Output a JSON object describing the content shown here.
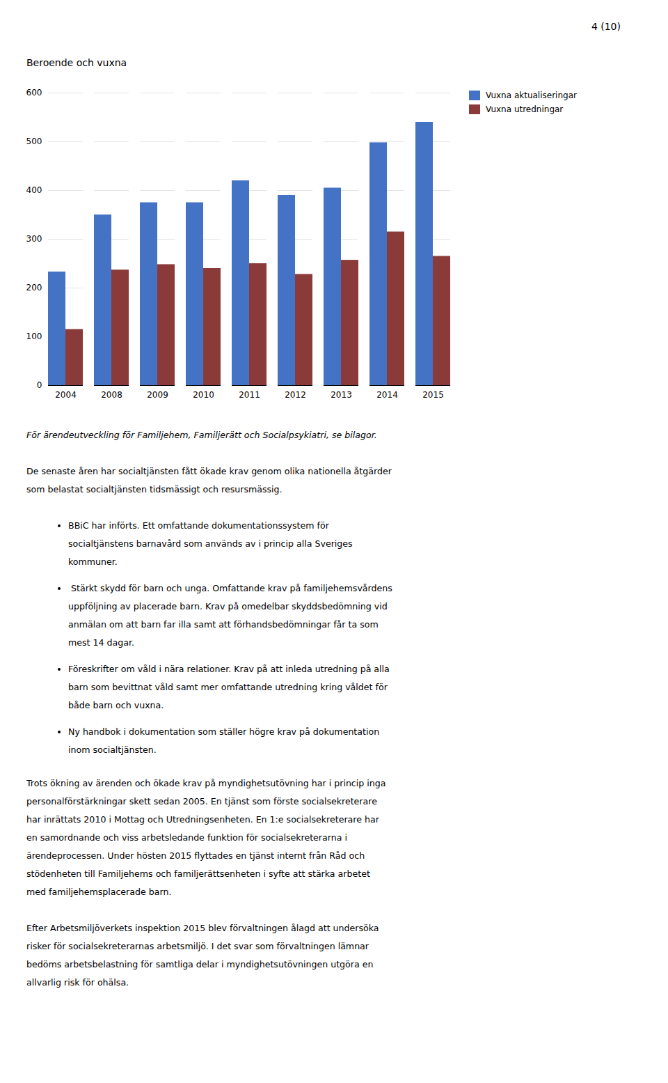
{
  "chart_data": {
    "type": "bar",
    "title": "Beroende och vuxna",
    "categories": [
      "2004",
      "2008",
      "2009",
      "2010",
      "2011",
      "2012",
      "2013",
      "2014",
      "2015"
    ],
    "series": [
      {
        "name": "Vuxna aktualiseringar",
        "color": "#4472C4",
        "values": [
          233,
          350,
          375,
          375,
          420,
          390,
          405,
          498,
          540
        ]
      },
      {
        "name": "Vuxna utredningar",
        "color": "#8B3A3A",
        "values": [
          115,
          237,
          248,
          240,
          250,
          228,
          257,
          315,
          265
        ]
      }
    ],
    "ylim": [
      0,
      600
    ],
    "yticks": [
      0,
      100,
      200,
      300,
      400,
      500,
      600
    ],
    "grid": true,
    "legend": "right",
    "annotations": [
      "4 (10)",
      "För ärendeutveckling för Familjehem, Familjerätt och Socialpsykiatri, se bilagor.",
      "De senaste åren har socialtjänsten fått ökade krav genom olika nationella åtgärder\nsom belastat socialtjänsten tidsmässigt och resursmässig.",
      "BBiC har införts. Ett omfattande dokumentationssystem för\nsocialtjänstens barnavård som används av i princip alla Sveriges\nkommuner.",
      " Stärkt skydd för barn och unga. Omfattande krav på familjehemsvårdens\nuppföljning av placerade barn. Krav på omedelbar skyddsbedömning vid\nanmälan om att barn far illa samt att förhandsbedömningar får ta som\nmest 14 dagar.",
      "Föreskrifter om våld i nära relationer. Krav på att inleda utredning på alla\nbarn som bevittnat våld samt mer omfattande utredning kring våldet för\nbåde barn och vuxna.",
      "Ny handbok i dokumentation som ställer högre krav på dokumentation\ninom socialtjänsten.",
      "Trots ökning av ärenden och ökade krav på myndighetsutövning har i princip inga\npersonalförstärkningar skett sedan 2005. En tjänst som förste socialsekreterare\nhar inrättats 2010 i Mottag och Utredningsenheten. En 1:e socialsekreterare har\nen samordnande och viss arbetsledande funktion för socialsekreterarna i\närendeprocessen. Under hösten 2015 flyttades en tjänst internt från Råd och\nstödenheten till Familjehems och familjerättsenheten i syfte att stärka arbetet\nmed familjehemsplacerade barn.",
      "Efter Arbetsmiljöverkets inspektion 2015 blev förvaltningen ålagd att undersöka\nrisker för socialsekreterarnas arbetsmiljö. I det svar som förvaltningen lämnar\nbedöms arbetsbelastning för samtliga delar i myndighetsutövningen utgöra en\nallvarlig risk för ohälsa."
    ]
  }
}
